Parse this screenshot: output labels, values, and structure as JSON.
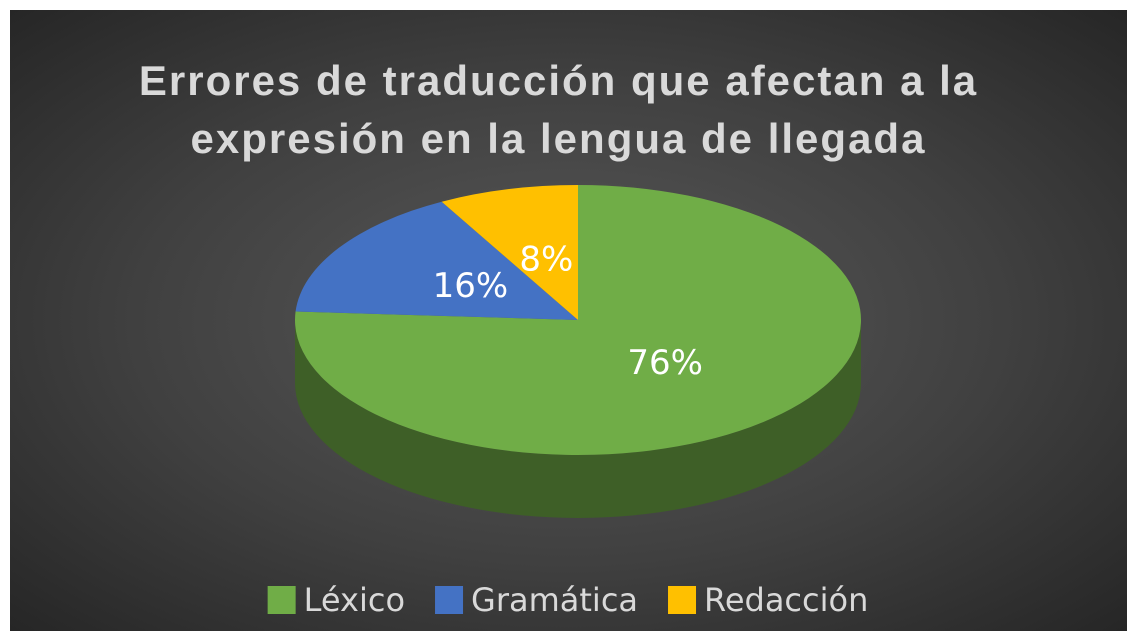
{
  "chart_data": {
    "type": "pie",
    "title": "Errores de traducción que afectan a la expresión en la lengua de llegada",
    "categories": [
      "Léxico",
      "Gramática",
      "Redacción"
    ],
    "values": [
      76,
      16,
      8
    ],
    "value_labels": [
      "76%",
      "16%",
      "8%"
    ],
    "colors": [
      "#70ad47",
      "#4472c4",
      "#ffc000"
    ],
    "legend": "bottom"
  }
}
